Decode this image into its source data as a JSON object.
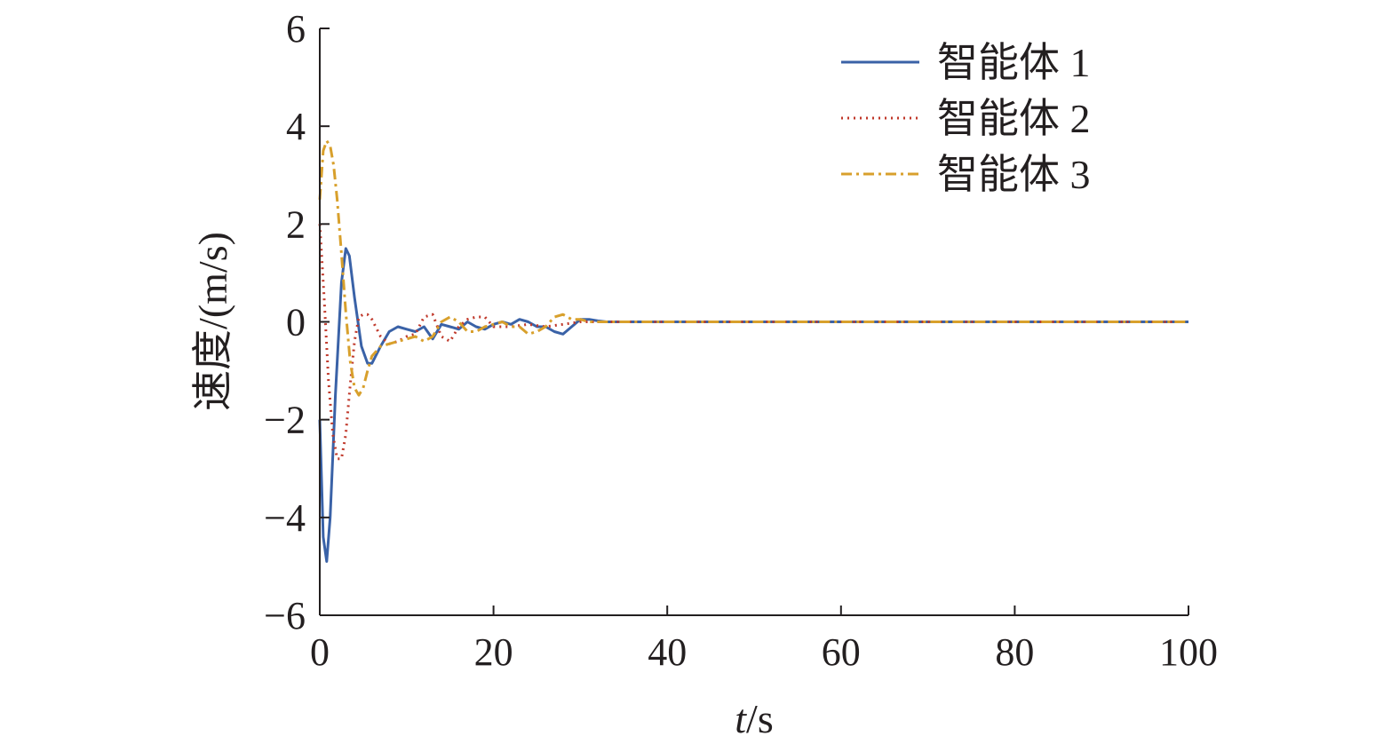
{
  "chart_data": {
    "type": "line",
    "xlabel_var": "t",
    "xlabel_unit": "/s",
    "ylabel": "速度/(m/s)",
    "xlim": [
      0,
      100
    ],
    "ylim": [
      -6,
      6
    ],
    "xticks": [
      0,
      20,
      40,
      60,
      80,
      100
    ],
    "yticks": [
      -6,
      -4,
      -2,
      0,
      2,
      4,
      6
    ],
    "xtick_labels": [
      "0",
      "20",
      "40",
      "60",
      "80",
      "100"
    ],
    "ytick_labels": [
      "−6",
      "−4",
      "−2",
      "0",
      "2",
      "4",
      "6"
    ],
    "grid": false,
    "legend_position": "top-right",
    "series": [
      {
        "name": "智能体 1",
        "color": "#3a62a7",
        "dash": "solid",
        "x": [
          0,
          0.4,
          0.8,
          1.2,
          1.8,
          2.5,
          3.0,
          3.4,
          4.0,
          4.8,
          5.5,
          6.0,
          7.0,
          8.0,
          9.0,
          10.0,
          11.0,
          12.0,
          13.0,
          14.0,
          15.0,
          16.0,
          17.0,
          18.0,
          19.0,
          20.0,
          21.0,
          22.0,
          23.0,
          24.0,
          25.0,
          26.0,
          27.0,
          28.0,
          29.0,
          30.0,
          31.0,
          32.0,
          33.0,
          35.0,
          40.0,
          60.0,
          80.0,
          100.0
        ],
        "y": [
          -2.0,
          -4.4,
          -4.9,
          -4.0,
          -1.5,
          0.8,
          1.5,
          1.35,
          0.5,
          -0.5,
          -0.85,
          -0.85,
          -0.5,
          -0.2,
          -0.1,
          -0.15,
          -0.2,
          -0.1,
          -0.35,
          -0.05,
          -0.1,
          -0.15,
          0.0,
          -0.1,
          -0.15,
          -0.05,
          0.0,
          -0.05,
          0.05,
          0.0,
          -0.1,
          -0.1,
          -0.2,
          -0.25,
          -0.1,
          0.05,
          0.05,
          0.02,
          0.0,
          0.0,
          0.0,
          0.0,
          0.0,
          0.0
        ]
      },
      {
        "name": "智能体 2",
        "color": "#c0392b",
        "dash": "dotted",
        "x": [
          0,
          0.5,
          1.0,
          1.5,
          2.0,
          2.5,
          3.0,
          3.5,
          4.0,
          4.5,
          5.0,
          5.5,
          6.0,
          7.0,
          8.0,
          9.0,
          10.0,
          11.0,
          12.0,
          13.0,
          14.0,
          15.0,
          16.0,
          17.0,
          18.0,
          19.0,
          20.0,
          22.0,
          24.0,
          26.0,
          28.0,
          30.0,
          32.0,
          35.0,
          40.0,
          60.0,
          80.0,
          100.0
        ],
        "y": [
          2.0,
          0.5,
          -1.2,
          -2.3,
          -2.8,
          -2.8,
          -2.3,
          -1.3,
          -0.4,
          0.1,
          0.15,
          0.15,
          0.05,
          -0.3,
          -0.45,
          -0.4,
          -0.3,
          -0.25,
          0.1,
          0.15,
          -0.3,
          -0.4,
          -0.1,
          0.05,
          0.1,
          0.1,
          -0.1,
          -0.1,
          -0.05,
          -0.1,
          -0.05,
          0.0,
          0.0,
          0.0,
          0.0,
          0.0,
          0.0,
          0.0
        ]
      },
      {
        "name": "智能体 3",
        "color": "#d8a02c",
        "dash": "dashdot",
        "x": [
          0,
          0.4,
          0.8,
          1.2,
          1.6,
          2.0,
          2.5,
          3.0,
          3.5,
          4.0,
          4.5,
          5.0,
          5.5,
          6.0,
          7.0,
          8.0,
          9.0,
          10.0,
          11.0,
          12.0,
          13.0,
          14.0,
          15.0,
          16.0,
          17.0,
          18.0,
          19.0,
          20.0,
          21.0,
          22.0,
          23.0,
          24.0,
          25.0,
          26.0,
          27.0,
          28.0,
          29.0,
          30.0,
          31.0,
          33.0,
          35.0,
          40.0,
          60.0,
          80.0,
          100.0
        ],
        "y": [
          2.5,
          3.5,
          3.7,
          3.6,
          3.2,
          2.5,
          1.4,
          0.2,
          -0.8,
          -1.35,
          -1.5,
          -1.35,
          -1.0,
          -0.7,
          -0.5,
          -0.45,
          -0.4,
          -0.35,
          -0.3,
          -0.4,
          -0.3,
          0.0,
          0.1,
          0.0,
          -0.2,
          -0.2,
          -0.1,
          -0.05,
          0.0,
          -0.1,
          -0.1,
          -0.25,
          -0.2,
          -0.1,
          0.1,
          0.15,
          0.05,
          0.05,
          0.0,
          0.0,
          0.0,
          0.0,
          0.0,
          0.0,
          0.0
        ]
      }
    ]
  }
}
